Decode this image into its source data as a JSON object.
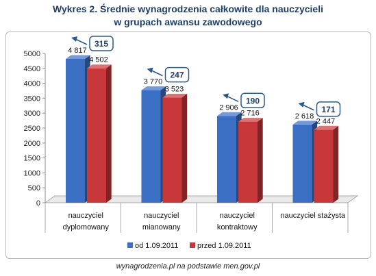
{
  "title_line1": "Wykres 2. Średnie wynagrodzenia całkowite dla nauczycieli",
  "title_line2": "w grupach awansu zawodowego",
  "source": "wynagrodzenia.pl na podstawie men.gov.pl",
  "chart_data": {
    "type": "bar",
    "title": "Wykres 2. Średnie wynagrodzenia całkowite dla nauczycieli w grupach awansu zawodowego",
    "categories": [
      [
        "nauczyciel",
        "dyplomowany"
      ],
      [
        "nauczyciel",
        "mianowany"
      ],
      [
        "nauczyciel",
        "kontraktowy"
      ],
      [
        "nauczyciel stażysta"
      ]
    ],
    "series": [
      {
        "name": "od 1.09.2011",
        "values": [
          4817,
          3770,
          2906,
          2618
        ],
        "labels": [
          "4 817",
          "3 770",
          "2 906",
          "2 618"
        ],
        "color": "#3a6fc4"
      },
      {
        "name": "przed 1.09.2011",
        "values": [
          4502,
          3523,
          2716,
          2447
        ],
        "labels": [
          "4 502",
          "3 523",
          "2 716",
          "2 447"
        ],
        "color": "#c8383a"
      }
    ],
    "differences": [
      "315",
      "247",
      "190",
      "171"
    ],
    "yticks": [
      0,
      500,
      1000,
      1500,
      2000,
      2500,
      3000,
      3500,
      4000,
      4500,
      5000
    ],
    "ylim": [
      0,
      5000
    ],
    "legend_position": "bottom",
    "grid": false
  }
}
